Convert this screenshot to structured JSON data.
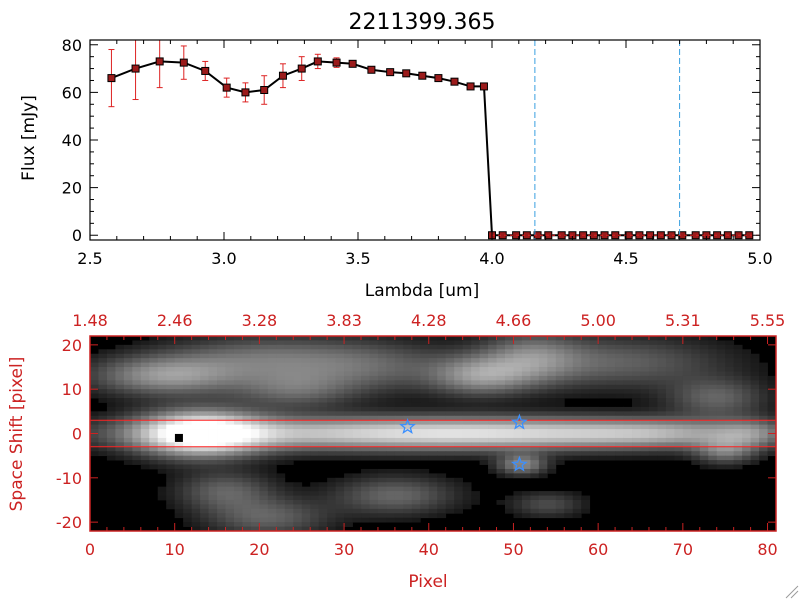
{
  "chart_data": [
    {
      "type": "line",
      "title": "2211399.365",
      "xlabel": "Lambda [um]",
      "ylabel": "Flux [mJy]",
      "xlim": [
        2.5,
        5.0
      ],
      "ylim": [
        -2,
        82
      ],
      "x_ticks": [
        2.5,
        3.0,
        3.5,
        4.0,
        4.5,
        5.0
      ],
      "x_tick_labels": [
        "2.5",
        "3.0",
        "3.5",
        "4.0",
        "4.5",
        "5.0"
      ],
      "y_ticks": [
        0,
        20,
        40,
        60,
        80
      ],
      "y_tick_labels": [
        "0",
        "20",
        "40",
        "60",
        "80"
      ],
      "series_color": "#000000",
      "marker_color": "#9b1b1b",
      "error_color": "#dd2222",
      "vlines": [
        4.16,
        4.7
      ],
      "vline_color": "#3aa0e0",
      "series": [
        {
          "x": [
            2.58,
            2.67,
            2.76,
            2.85,
            2.93,
            3.01,
            3.08,
            3.15,
            3.22,
            3.29,
            3.35,
            3.42,
            3.48,
            3.55,
            3.62,
            3.68,
            3.74,
            3.8,
            3.86,
            3.92,
            3.97,
            4.0,
            4.04,
            4.09,
            4.13,
            4.17,
            4.21,
            4.26,
            4.3,
            4.34,
            4.38,
            4.42,
            4.46,
            4.51,
            4.55,
            4.59,
            4.63,
            4.67,
            4.71,
            4.76,
            4.8,
            4.84,
            4.88,
            4.92,
            4.96
          ],
          "y": [
            66,
            70,
            73,
            72.5,
            69,
            62,
            60,
            61,
            67,
            70,
            73,
            72.5,
            72,
            69.5,
            68.5,
            68,
            67,
            66,
            64.5,
            62.5,
            62.5,
            0,
            0,
            0,
            0,
            0,
            0,
            0,
            0,
            0,
            0,
            0,
            0,
            0,
            0,
            0,
            0,
            0,
            0,
            0,
            0,
            0,
            0,
            0,
            0
          ],
          "yerr": [
            12,
            13,
            11,
            7,
            4,
            4,
            4,
            6,
            5,
            5,
            3,
            2,
            0,
            0,
            0,
            0,
            0,
            0,
            0,
            0,
            0,
            0,
            0,
            0,
            0,
            0,
            0,
            0,
            0,
            0,
            0,
            0,
            0,
            0,
            0,
            0,
            0,
            0,
            0,
            0,
            0,
            0,
            0,
            0,
            0
          ]
        }
      ]
    },
    {
      "type": "heatmap",
      "xlabel": "Pixel",
      "ylabel": "Space Shift [pixel]",
      "xlim": [
        0,
        81
      ],
      "ylim": [
        -22,
        22
      ],
      "x_ticks": [
        0,
        10,
        20,
        30,
        40,
        50,
        60,
        70,
        80
      ],
      "x_tick_labels": [
        "0",
        "10",
        "20",
        "30",
        "40",
        "50",
        "60",
        "70",
        "80"
      ],
      "y_ticks": [
        -20,
        -10,
        0,
        10,
        20
      ],
      "y_tick_labels": [
        "-20",
        "-10",
        "0",
        "10",
        "20"
      ],
      "top_ticks": [
        0,
        10,
        20,
        30,
        40,
        50,
        60,
        70,
        80
      ],
      "top_tick_labels": [
        "1.48",
        "2.46",
        "3.28",
        "3.83",
        "4.28",
        "4.66",
        "5.00",
        "5.31",
        "5.55"
      ],
      "axis_color": "#cc2222",
      "hlines": [
        3,
        -3
      ],
      "hline_color": "#ff2020",
      "black_marker": {
        "x": 10.5,
        "y": -1
      },
      "star_markers": [
        {
          "x": 37.5,
          "y": 1.5
        },
        {
          "x": 50.7,
          "y": 2.5
        },
        {
          "x": 50.7,
          "y": -7
        }
      ],
      "star_color": "#3a8fff",
      "blobs": [
        {
          "x": 13,
          "y": 0,
          "sx": 5,
          "sy": 3.5,
          "a": 1.0
        },
        {
          "x": 30,
          "y": 0,
          "sx": 18,
          "sy": 2.6,
          "a": 0.62
        },
        {
          "x": 52,
          "y": 0,
          "sx": 14,
          "sy": 2.5,
          "a": 0.48
        },
        {
          "x": 68,
          "y": 0,
          "sx": 8,
          "sy": 2.3,
          "a": 0.35
        },
        {
          "x": 78,
          "y": 0,
          "sx": 3,
          "sy": 2.3,
          "a": 0.3
        },
        {
          "x": 9,
          "y": 13,
          "sx": 6,
          "sy": 3,
          "a": 0.5
        },
        {
          "x": 20,
          "y": 17,
          "sx": 8,
          "sy": 3.5,
          "a": 0.32
        },
        {
          "x": 24,
          "y": 10,
          "sx": 5,
          "sy": 3,
          "a": 0.3
        },
        {
          "x": 33,
          "y": 15,
          "sx": 7,
          "sy": 4,
          "a": 0.28
        },
        {
          "x": 46,
          "y": 13,
          "sx": 4,
          "sy": 3,
          "a": 0.45
        },
        {
          "x": 52,
          "y": 17,
          "sx": 4,
          "sy": 4,
          "a": 0.35
        },
        {
          "x": 62,
          "y": 16,
          "sx": 9,
          "sy": 4,
          "a": 0.3
        },
        {
          "x": 74,
          "y": 8,
          "sx": 4,
          "sy": 3,
          "a": 0.3
        },
        {
          "x": 16,
          "y": -13,
          "sx": 4,
          "sy": 3,
          "a": 0.3
        },
        {
          "x": 21,
          "y": -19,
          "sx": 5,
          "sy": 3,
          "a": 0.3
        },
        {
          "x": 36,
          "y": -14,
          "sx": 5,
          "sy": 3,
          "a": 0.32
        },
        {
          "x": 51,
          "y": -7,
          "sx": 2,
          "sy": 1.6,
          "a": 0.45
        },
        {
          "x": 54,
          "y": -16,
          "sx": 3,
          "sy": 2,
          "a": 0.22
        },
        {
          "x": 75,
          "y": -4,
          "sx": 2.5,
          "sy": 2,
          "a": 0.35
        }
      ]
    }
  ]
}
